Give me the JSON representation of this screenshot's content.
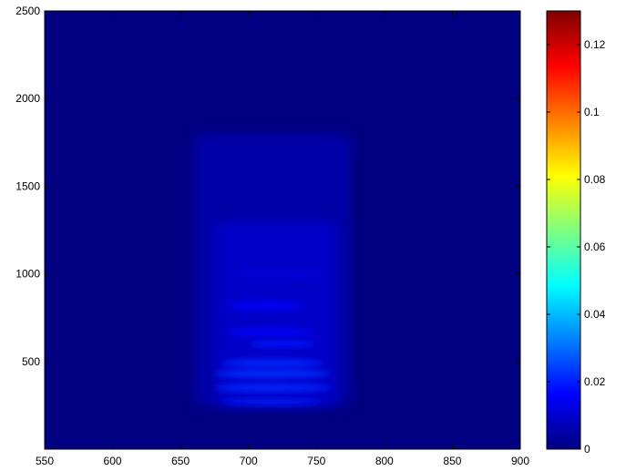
{
  "chart_data": {
    "type": "heatmap",
    "title": "",
    "xlabel": "",
    "ylabel": "",
    "xlim": [
      550,
      900
    ],
    "ylim": [
      0,
      2500
    ],
    "x_ticks": [
      550,
      600,
      650,
      700,
      750,
      800,
      850,
      900
    ],
    "y_ticks": [
      500,
      1000,
      1500,
      2000,
      2500
    ],
    "colorbar": {
      "colormap": "jet",
      "clim": [
        0,
        0.13
      ],
      "ticks": [
        0,
        0.02,
        0.04,
        0.06,
        0.08,
        0.1,
        0.12
      ],
      "tick_labels": [
        "0",
        "0.02",
        "0.04",
        "0.06",
        "0.08",
        "0.1",
        "0.12"
      ]
    },
    "background_value": 0,
    "features": [
      {
        "kind": "diffuse_column",
        "x_range": [
          660,
          775
        ],
        "y_range": [
          250,
          1800
        ],
        "value": 0.005
      },
      {
        "kind": "inner_column",
        "x_range": [
          675,
          765
        ],
        "y_range": [
          250,
          1300
        ],
        "value": 0.009
      },
      {
        "kind": "band",
        "x_range": [
          690,
          755
        ],
        "y_center": 1000,
        "height": 60,
        "value": 0.011
      },
      {
        "kind": "band",
        "x_range": [
          685,
          740
        ],
        "y_center": 820,
        "height": 70,
        "value": 0.014
      },
      {
        "kind": "band",
        "x_range": [
          685,
          750
        ],
        "y_center": 670,
        "height": 40,
        "value": 0.017
      },
      {
        "kind": "band",
        "x_range": [
          700,
          750
        ],
        "y_center": 600,
        "height": 35,
        "value": 0.019
      },
      {
        "kind": "band",
        "x_range": [
          680,
          755
        ],
        "y_center": 490,
        "height": 45,
        "value": 0.021
      },
      {
        "kind": "band",
        "x_range": [
          675,
          760
        ],
        "y_center": 430,
        "height": 45,
        "value": 0.022
      },
      {
        "kind": "band",
        "x_range": [
          675,
          760
        ],
        "y_center": 350,
        "height": 45,
        "value": 0.021
      },
      {
        "kind": "band",
        "x_range": [
          680,
          755
        ],
        "y_center": 270,
        "height": 30,
        "value": 0.02
      }
    ]
  }
}
